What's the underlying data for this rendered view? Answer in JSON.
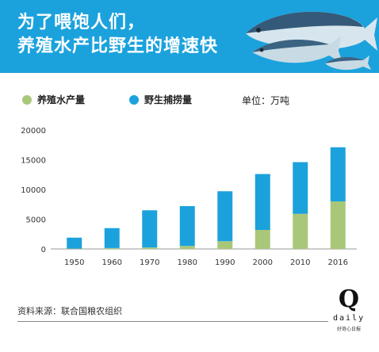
{
  "header": {
    "title_line1": "为了喂饱人们，",
    "title_line2": "养殖水产比野生的增速快",
    "bg_color": "#1ba2dd"
  },
  "legend": {
    "items": [
      {
        "label": "养殖水产量",
        "color": "#a9c779"
      },
      {
        "label": "野生捕捞量",
        "color": "#1ba2dd"
      }
    ],
    "unit": "单位：万吨"
  },
  "chart_data": {
    "type": "bar",
    "stacked": true,
    "categories": [
      "1950",
      "1960",
      "1970",
      "1980",
      "1990",
      "2000",
      "2010",
      "2016"
    ],
    "series": [
      {
        "name": "养殖水产量",
        "color": "#a9c779",
        "values": [
          50,
          150,
          250,
          500,
          1300,
          3200,
          5900,
          8000
        ]
      },
      {
        "name": "野生捕捞量",
        "color": "#1ba2dd",
        "values": [
          1850,
          3350,
          6250,
          6700,
          8400,
          9400,
          8700,
          9100
        ]
      }
    ],
    "y_ticks": [
      "0",
      "5000",
      "10000",
      "15000",
      "20000"
    ],
    "ylim": [
      0,
      20000
    ],
    "grid": false,
    "legend_position": "top"
  },
  "footer": {
    "source": "资料来源：联合国粮农组织",
    "logo_letter": "Q",
    "logo_word": "daily",
    "logo_sub": "好奇心日报"
  }
}
